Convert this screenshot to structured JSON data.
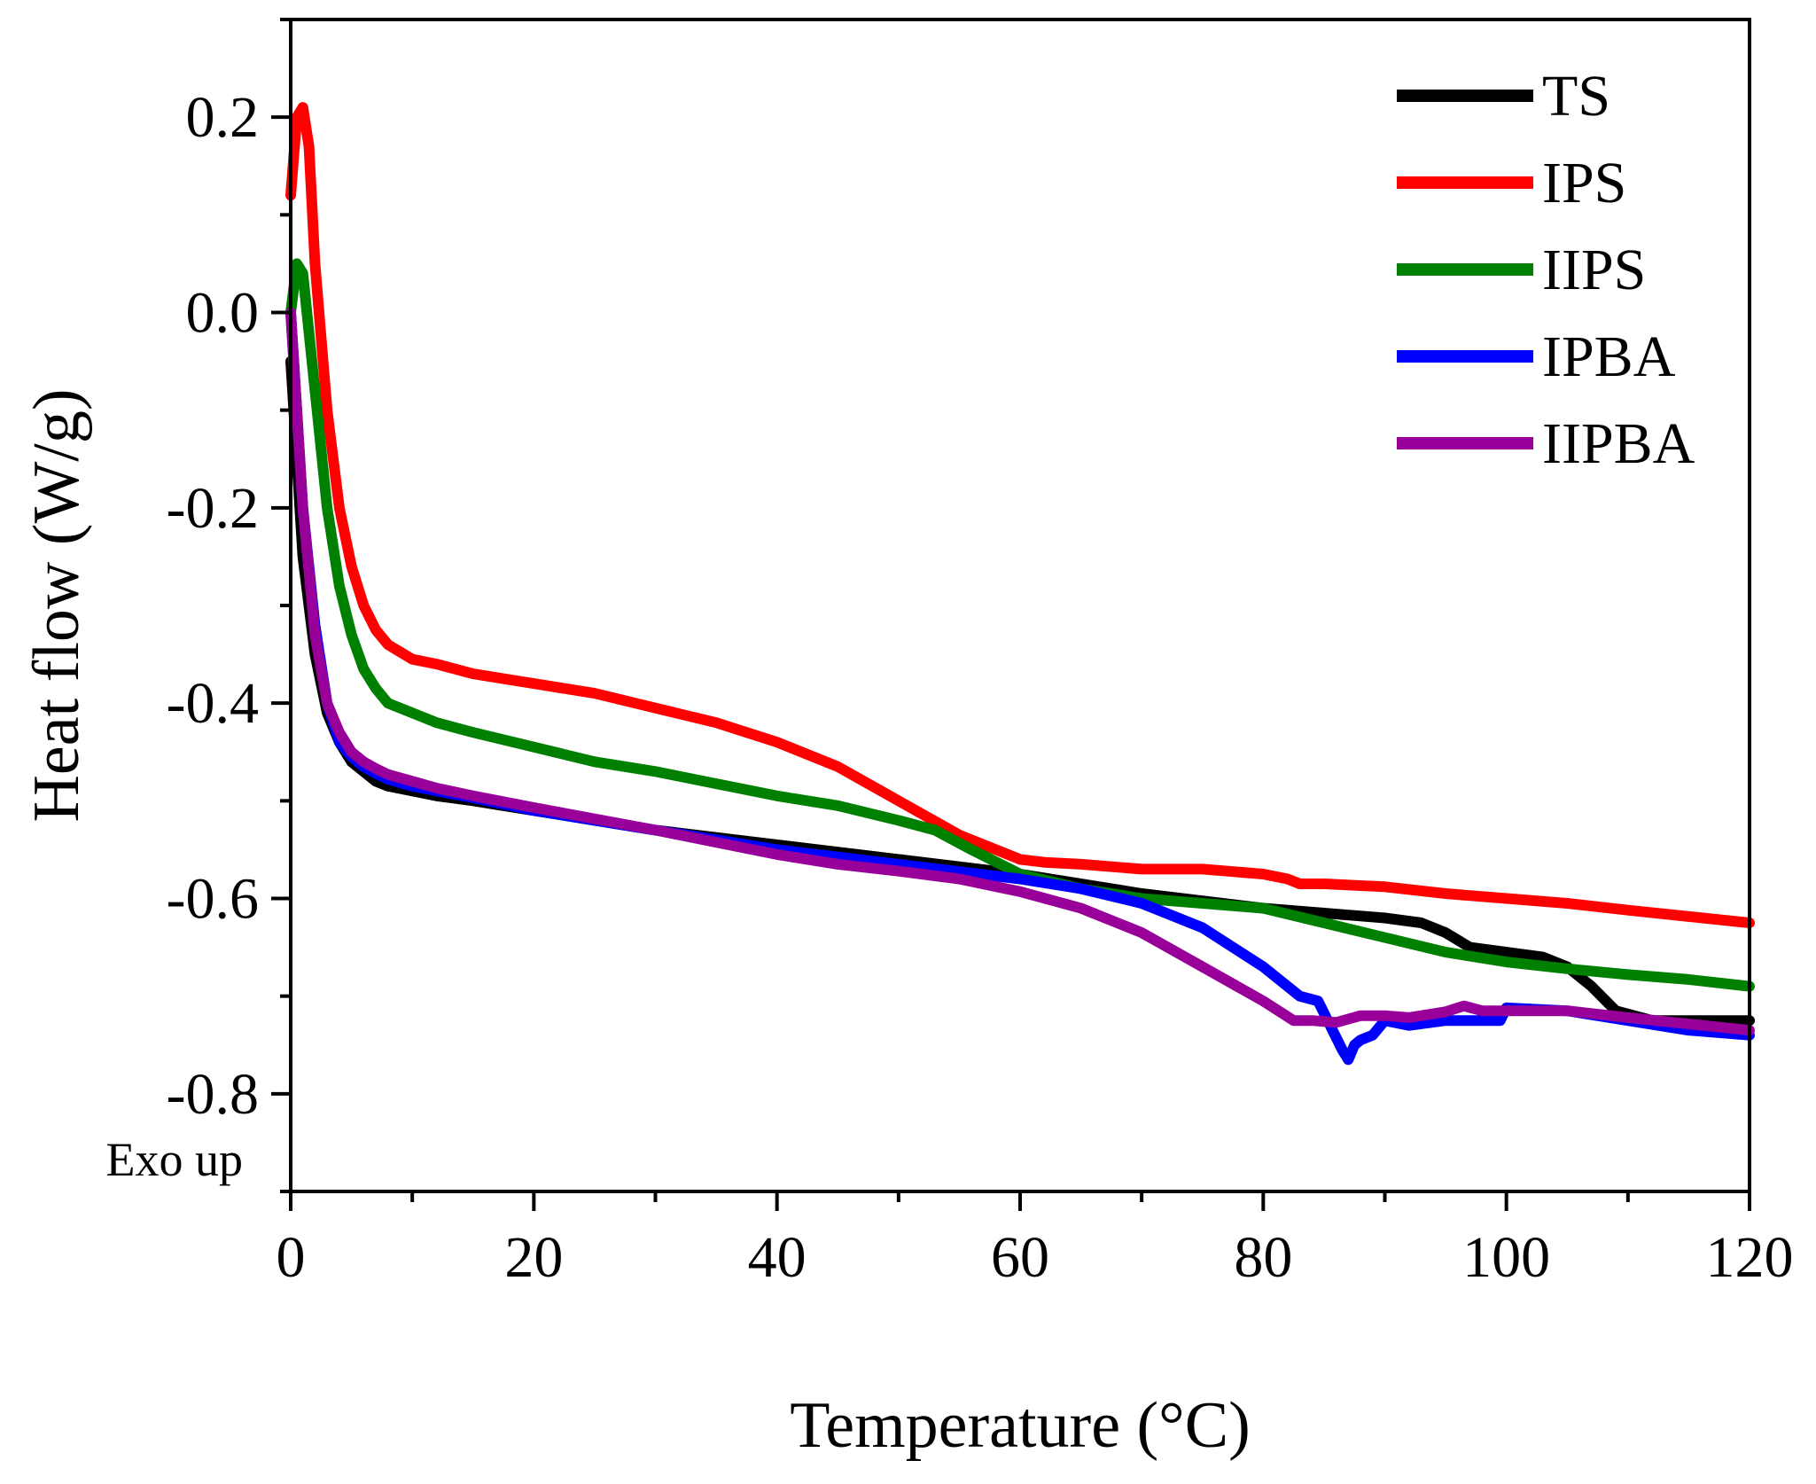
{
  "chart_data": {
    "type": "line",
    "title": "",
    "xlabel": "Temperature (°C)",
    "ylabel": "Heat flow (W/g)",
    "annotation": "Exo up",
    "xlim": [
      0,
      120
    ],
    "ylim": [
      -0.9,
      0.3
    ],
    "xticks": [
      0,
      20,
      40,
      60,
      80,
      100,
      120
    ],
    "xtick_labels": [
      "0",
      "20",
      "40",
      "60",
      "80",
      "100",
      "120"
    ],
    "yticks": [
      0.2,
      0.0,
      -0.2,
      -0.4,
      -0.6,
      -0.8
    ],
    "ytick_labels": [
      "0.2",
      "0.0",
      "-0.2",
      "-0.4",
      "-0.6",
      "-0.8"
    ],
    "legend_position": "top-right",
    "grid": false,
    "series": [
      {
        "name": "TS",
        "color": "#000000",
        "x": [
          0,
          0.5,
          1,
          2,
          3,
          4,
          5,
          6,
          7,
          8,
          10,
          12,
          15,
          20,
          30,
          40,
          50,
          60,
          70,
          80,
          85,
          90,
          93,
          95,
          97,
          100,
          103,
          105,
          107,
          109,
          112,
          115,
          120
        ],
        "y": [
          -0.05,
          -0.15,
          -0.25,
          -0.35,
          -0.41,
          -0.44,
          -0.46,
          -0.47,
          -0.48,
          -0.485,
          -0.49,
          -0.495,
          -0.5,
          -0.51,
          -0.53,
          -0.545,
          -0.56,
          -0.575,
          -0.595,
          -0.61,
          -0.615,
          -0.62,
          -0.625,
          -0.635,
          -0.65,
          -0.655,
          -0.66,
          -0.67,
          -0.69,
          -0.715,
          -0.725,
          -0.725,
          -0.725
        ]
      },
      {
        "name": "IPS",
        "color": "#ff0000",
        "x": [
          0,
          0.5,
          1,
          1.5,
          2,
          3,
          4,
          5,
          6,
          7,
          8,
          10,
          12,
          15,
          20,
          25,
          30,
          35,
          40,
          45,
          50,
          55,
          60,
          62,
          65,
          70,
          75,
          80,
          82,
          83,
          85,
          90,
          95,
          100,
          105,
          110,
          120
        ],
        "y": [
          0.12,
          0.2,
          0.21,
          0.17,
          0.05,
          -0.1,
          -0.2,
          -0.26,
          -0.3,
          -0.325,
          -0.34,
          -0.355,
          -0.36,
          -0.37,
          -0.38,
          -0.39,
          -0.405,
          -0.42,
          -0.44,
          -0.465,
          -0.5,
          -0.535,
          -0.56,
          -0.563,
          -0.565,
          -0.57,
          -0.57,
          -0.575,
          -0.58,
          -0.585,
          -0.585,
          -0.588,
          -0.595,
          -0.6,
          -0.605,
          -0.612,
          -0.625
        ]
      },
      {
        "name": "IIPS",
        "color": "#008000",
        "x": [
          0,
          0.5,
          1,
          2,
          3,
          4,
          5,
          6,
          7,
          8,
          10,
          12,
          15,
          20,
          25,
          30,
          40,
          45,
          50,
          53,
          56,
          60,
          65,
          70,
          75,
          80,
          85,
          90,
          95,
          100,
          105,
          110,
          115,
          120
        ],
        "y": [
          0.0,
          0.05,
          0.04,
          -0.08,
          -0.2,
          -0.28,
          -0.33,
          -0.365,
          -0.385,
          -0.4,
          -0.41,
          -0.42,
          -0.43,
          -0.445,
          -0.46,
          -0.47,
          -0.495,
          -0.505,
          -0.52,
          -0.53,
          -0.55,
          -0.575,
          -0.59,
          -0.6,
          -0.605,
          -0.61,
          -0.625,
          -0.64,
          -0.655,
          -0.665,
          -0.672,
          -0.678,
          -0.683,
          -0.69
        ]
      },
      {
        "name": "IPBA",
        "color": "#0000ff",
        "x": [
          0,
          0.5,
          1,
          2,
          3,
          4,
          5,
          6,
          7,
          8,
          10,
          12,
          15,
          20,
          30,
          40,
          50,
          60,
          65,
          70,
          75,
          80,
          83,
          84.5,
          85.5,
          86.5,
          87,
          87.5,
          88,
          89,
          90,
          92,
          95,
          98,
          99.5,
          100,
          105,
          110,
          115,
          120
        ],
        "y": [
          0.0,
          -0.1,
          -0.2,
          -0.32,
          -0.4,
          -0.44,
          -0.455,
          -0.465,
          -0.472,
          -0.478,
          -0.485,
          -0.49,
          -0.497,
          -0.51,
          -0.53,
          -0.55,
          -0.565,
          -0.58,
          -0.59,
          -0.605,
          -0.63,
          -0.67,
          -0.7,
          -0.705,
          -0.73,
          -0.755,
          -0.765,
          -0.75,
          -0.745,
          -0.74,
          -0.725,
          -0.73,
          -0.725,
          -0.725,
          -0.725,
          -0.712,
          -0.715,
          -0.725,
          -0.735,
          -0.74
        ]
      },
      {
        "name": "IIPBA",
        "color": "#990099",
        "x": [
          0,
          0.5,
          1,
          2,
          3,
          4,
          5,
          6,
          7,
          8,
          10,
          12,
          15,
          20,
          30,
          40,
          45,
          50,
          55,
          60,
          65,
          70,
          75,
          80,
          82.5,
          84,
          86,
          88,
          90,
          92,
          95,
          96.5,
          98,
          100,
          105,
          110,
          120
        ],
        "y": [
          0.0,
          -0.1,
          -0.2,
          -0.33,
          -0.4,
          -0.43,
          -0.45,
          -0.46,
          -0.467,
          -0.473,
          -0.48,
          -0.487,
          -0.495,
          -0.507,
          -0.53,
          -0.555,
          -0.565,
          -0.572,
          -0.58,
          -0.593,
          -0.61,
          -0.635,
          -0.67,
          -0.705,
          -0.725,
          -0.725,
          -0.727,
          -0.72,
          -0.72,
          -0.722,
          -0.716,
          -0.71,
          -0.715,
          -0.715,
          -0.715,
          -0.722,
          -0.735
        ]
      }
    ]
  }
}
